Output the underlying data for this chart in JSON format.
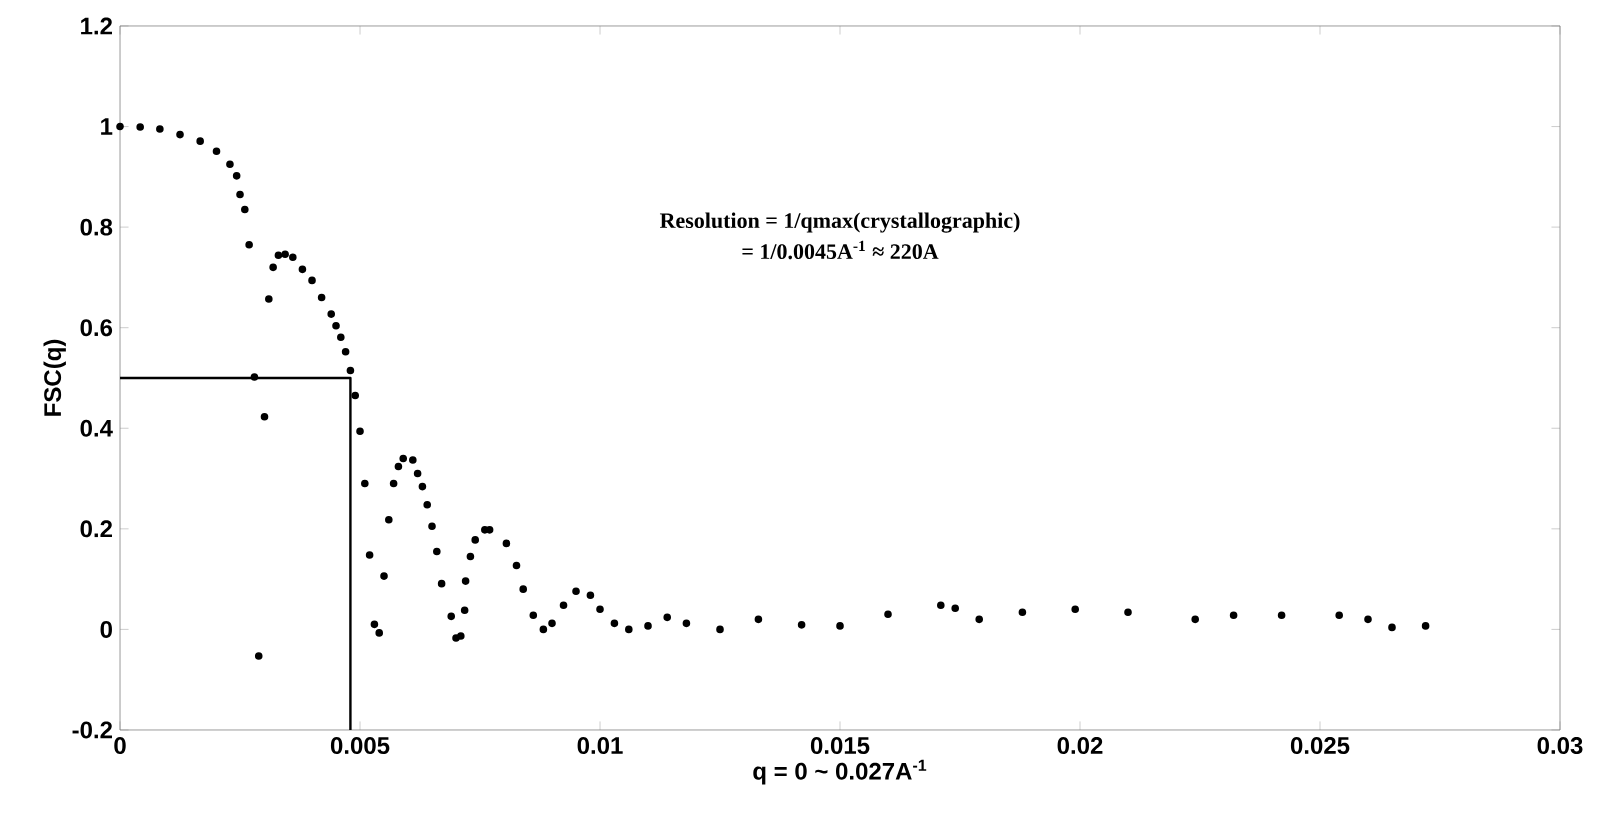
{
  "chart_data": {
    "type": "scatter",
    "xlabel": "q = 0 ~ 0.027A$^{-1}$",
    "ylabel": "FSC(q)",
    "annotations": [
      "Resolution = 1/qmax(crystallographic)",
      "= 1/0.0045A$^{-1}$ ≈ 220A"
    ],
    "xlim": [
      0,
      0.03
    ],
    "ylim": [
      -0.2,
      1.2
    ],
    "xticks": [
      0,
      0.005,
      0.01,
      0.015,
      0.02,
      0.025,
      0.03
    ],
    "yticks": [
      -0.2,
      0,
      0.2,
      0.4,
      0.6,
      0.8,
      1,
      1.2
    ],
    "grid": false,
    "series": [
      {
        "marker": "circle",
        "color": "#000000",
        "x": [
          0,
          0.00042,
          0.00083,
          0.00125,
          0.00167,
          0.00201,
          0.00229,
          0.00243,
          0.0025,
          0.0026,
          0.00269,
          0.0028,
          0.00289,
          0.00301,
          0.0031,
          0.00319,
          0.0033,
          0.00344,
          0.0036,
          0.0038,
          0.004,
          0.0042,
          0.0044,
          0.0045,
          0.0046,
          0.0047,
          0.0048,
          0.0049,
          0.005,
          0.0051,
          0.0052,
          0.0053,
          0.0054,
          0.0055,
          0.0056,
          0.0057,
          0.0058,
          0.0059,
          0.0061,
          0.0062,
          0.0063,
          0.0064,
          0.0065,
          0.0066,
          0.0067,
          0.0069,
          0.007,
          0.0071,
          0.00718,
          0.0072,
          0.0073,
          0.0074,
          0.0076,
          0.0077,
          0.00805,
          0.00826,
          0.0084,
          0.00861,
          0.00882,
          0.009,
          0.00924,
          0.0095,
          0.0098,
          0.01,
          0.0103,
          0.0106,
          0.011,
          0.0114,
          0.0118,
          0.0125,
          0.0133,
          0.0142,
          0.015,
          0.016,
          0.0171,
          0.0174,
          0.0179,
          0.0188,
          0.0199,
          0.021,
          0.0224,
          0.0232,
          0.0242,
          0.0254,
          0.026,
          0.0265,
          0.0272
        ],
        "values": [
          1.0,
          0.999,
          0.995,
          0.984,
          0.971,
          0.951,
          0.925,
          0.902,
          0.865,
          0.835,
          0.765,
          0.502,
          -0.053,
          0.423,
          0.657,
          0.72,
          0.744,
          0.746,
          0.74,
          0.716,
          0.694,
          0.66,
          0.627,
          0.604,
          0.581,
          0.552,
          0.515,
          0.465,
          0.394,
          0.29,
          0.148,
          0.01,
          -0.007,
          0.106,
          0.218,
          0.29,
          0.324,
          0.34,
          0.337,
          0.31,
          0.284,
          0.248,
          0.205,
          0.155,
          0.091,
          0.026,
          -0.017,
          -0.013,
          0.038,
          0.096,
          0.145,
          0.178,
          0.198,
          0.198,
          0.171,
          0.127,
          0.08,
          0.028,
          0.0,
          0.012,
          0.048,
          0.076,
          0.068,
          0.04,
          0.012,
          0.0,
          0.007,
          0.024,
          0.012,
          0.0,
          0.02,
          0.009,
          0.007,
          0.03,
          0.048,
          0.042,
          0.02,
          0.034,
          0.04,
          0.034,
          0.02,
          0.028,
          0.028,
          0.028,
          0.02,
          0.004,
          0.007
        ]
      },
      {
        "type": "line",
        "color": "#000000",
        "marker": "none",
        "x": [
          0,
          0.0048,
          0.0048
        ],
        "values": [
          0.5,
          0.5,
          -0.2
        ]
      }
    ]
  }
}
